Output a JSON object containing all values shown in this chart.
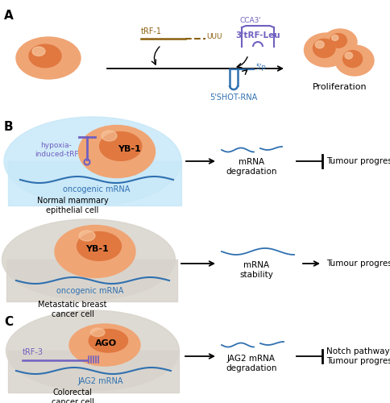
{
  "panel_A_label": "A",
  "panel_B_label": "B",
  "panel_C_label": "C",
  "cell_outer": "#F0A575",
  "cell_nucleus": "#E07840",
  "cell_highlight": "#F8C8A0",
  "blue_light_cell": "#C8E8F8",
  "blue_wave": "#3070B0",
  "purple": "#7060C0",
  "brown": "#8B6010",
  "gray_cell": "#D8D4CC",
  "trf1_label": "tRF-1",
  "uuu_label": "UUU",
  "trf_leu_label": "3'tRF-Leu",
  "cca_label": "CCA3'",
  "shot_rna_label": "5'SHOT-RNA",
  "five_p_label": "5'p",
  "proliferation_label": "Proliferation",
  "yb1_label": "YB-1",
  "hypoxia_label": "hypoxia-\ninduced-tRF",
  "oncogenic_label": "oncogenic mRNA",
  "normal_cell_label": "Normal mammary\nepithelial cell",
  "mrna_deg_label": "mRNA\ndegradation",
  "tumour_prog_label": "Tumour progression",
  "metastatic_label": "Metastatic breast\ncancer cell",
  "mrna_stab_label": "mRNA\nstability",
  "ago_label": "AGO",
  "trf3_label": "tRF-3",
  "jag2_label": "JAG2 mRNA",
  "colorectal_label": "Colorectal\ncancer cell",
  "jag2_deg_label": "JAG2 mRNA\ndegradation",
  "notch_label": "Notch pathway\nTumour progression"
}
